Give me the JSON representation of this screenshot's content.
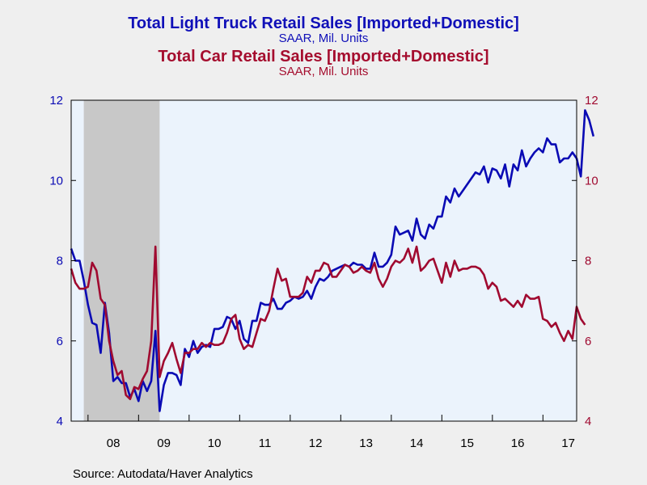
{
  "titles": {
    "truck_title": "Total Light Truck Retail Sales [Imported+Domestic]",
    "truck_sub": "SAAR, Mil. Units",
    "car_title": "Total Car Retail Sales [Imported+Domestic]",
    "car_sub": "SAAR, Mil. Units"
  },
  "source": "Source:  Autodata/Haver Analytics",
  "colors": {
    "truck": "#0a0ab4",
    "car": "#a00a30",
    "plot_bg": "#ebf3fc",
    "recession": "#c8c8c8"
  },
  "chart_data": {
    "type": "line",
    "x_start": "2007-09",
    "x_end": "2017-09",
    "x_tick_labels": [
      "08",
      "09",
      "10",
      "11",
      "12",
      "13",
      "14",
      "15",
      "16",
      "17"
    ],
    "ylim_left": [
      4,
      12
    ],
    "ylim_right": [
      4,
      12
    ],
    "y_ticks": [
      4,
      6,
      8,
      10,
      12
    ],
    "recession_shade": [
      "2007-12",
      "2009-06"
    ],
    "frequency": "monthly",
    "series": [
      {
        "name": "Total Light Truck Retail Sales [Imported+Domestic]",
        "axis": "left",
        "color": "#0a0ab4",
        "values": [
          8.3,
          8.0,
          8.0,
          7.5,
          6.9,
          6.45,
          6.4,
          5.7,
          6.95,
          6.2,
          5.0,
          5.1,
          4.95,
          4.95,
          4.6,
          4.8,
          4.5,
          5.0,
          4.75,
          5.0,
          6.25,
          4.25,
          4.9,
          5.2,
          5.2,
          5.15,
          4.9,
          5.8,
          5.6,
          6.0,
          5.7,
          5.85,
          5.9,
          5.85,
          6.3,
          6.3,
          6.35,
          6.6,
          6.55,
          6.3,
          6.5,
          6.05,
          5.95,
          6.5,
          6.5,
          6.95,
          6.9,
          6.9,
          7.05,
          6.8,
          6.8,
          6.95,
          7.0,
          7.1,
          7.05,
          7.1,
          7.25,
          7.05,
          7.35,
          7.55,
          7.5,
          7.6,
          7.75,
          7.8,
          7.85,
          7.9,
          7.85,
          7.95,
          7.9,
          7.9,
          7.8,
          7.8,
          8.2,
          7.85,
          7.85,
          7.95,
          8.15,
          8.85,
          8.65,
          8.7,
          8.75,
          8.5,
          9.05,
          8.65,
          8.55,
          8.9,
          8.8,
          9.1,
          9.1,
          9.6,
          9.45,
          9.8,
          9.6,
          9.75,
          9.9,
          10.05,
          10.2,
          10.15,
          10.35,
          9.95,
          10.3,
          10.25,
          10.05,
          10.4,
          9.85,
          10.4,
          10.25,
          10.75,
          10.35,
          10.55,
          10.7,
          10.8,
          10.7,
          11.05,
          10.9,
          10.9,
          10.45,
          10.55,
          10.55,
          10.7,
          10.55,
          10.1,
          11.75,
          11.5,
          11.1
        ]
      },
      {
        "name": "Total Car Retail Sales [Imported+Domestic]",
        "axis": "right",
        "color": "#a00a30",
        "values": [
          7.8,
          7.45,
          7.3,
          7.3,
          7.35,
          7.95,
          7.75,
          7.05,
          6.9,
          6.0,
          5.5,
          5.15,
          5.25,
          4.65,
          4.55,
          4.85,
          4.8,
          5.05,
          5.25,
          6.0,
          8.35,
          5.1,
          5.5,
          5.7,
          5.95,
          5.55,
          5.2,
          5.7,
          5.7,
          5.8,
          5.8,
          5.95,
          5.85,
          5.95,
          5.9,
          5.9,
          5.95,
          6.2,
          6.55,
          6.65,
          6.05,
          5.8,
          5.9,
          5.85,
          6.2,
          6.55,
          6.5,
          6.75,
          7.3,
          7.8,
          7.5,
          7.55,
          7.1,
          7.1,
          7.1,
          7.2,
          7.6,
          7.45,
          7.75,
          7.75,
          7.95,
          7.9,
          7.6,
          7.6,
          7.75,
          7.9,
          7.85,
          7.7,
          7.75,
          7.85,
          7.75,
          7.7,
          7.95,
          7.55,
          7.35,
          7.55,
          7.85,
          8.0,
          7.95,
          8.05,
          8.3,
          7.95,
          8.35,
          7.75,
          7.85,
          8.0,
          8.05,
          7.75,
          7.45,
          7.95,
          7.6,
          8.0,
          7.75,
          7.8,
          7.8,
          7.85,
          7.85,
          7.8,
          7.65,
          7.3,
          7.45,
          7.35,
          7.0,
          7.05,
          6.95,
          6.85,
          7.0,
          6.85,
          7.15,
          7.05,
          7.05,
          7.1,
          6.55,
          6.5,
          6.35,
          6.45,
          6.2,
          6.0,
          6.25,
          6.05,
          6.85,
          6.55,
          6.4
        ]
      }
    ]
  }
}
